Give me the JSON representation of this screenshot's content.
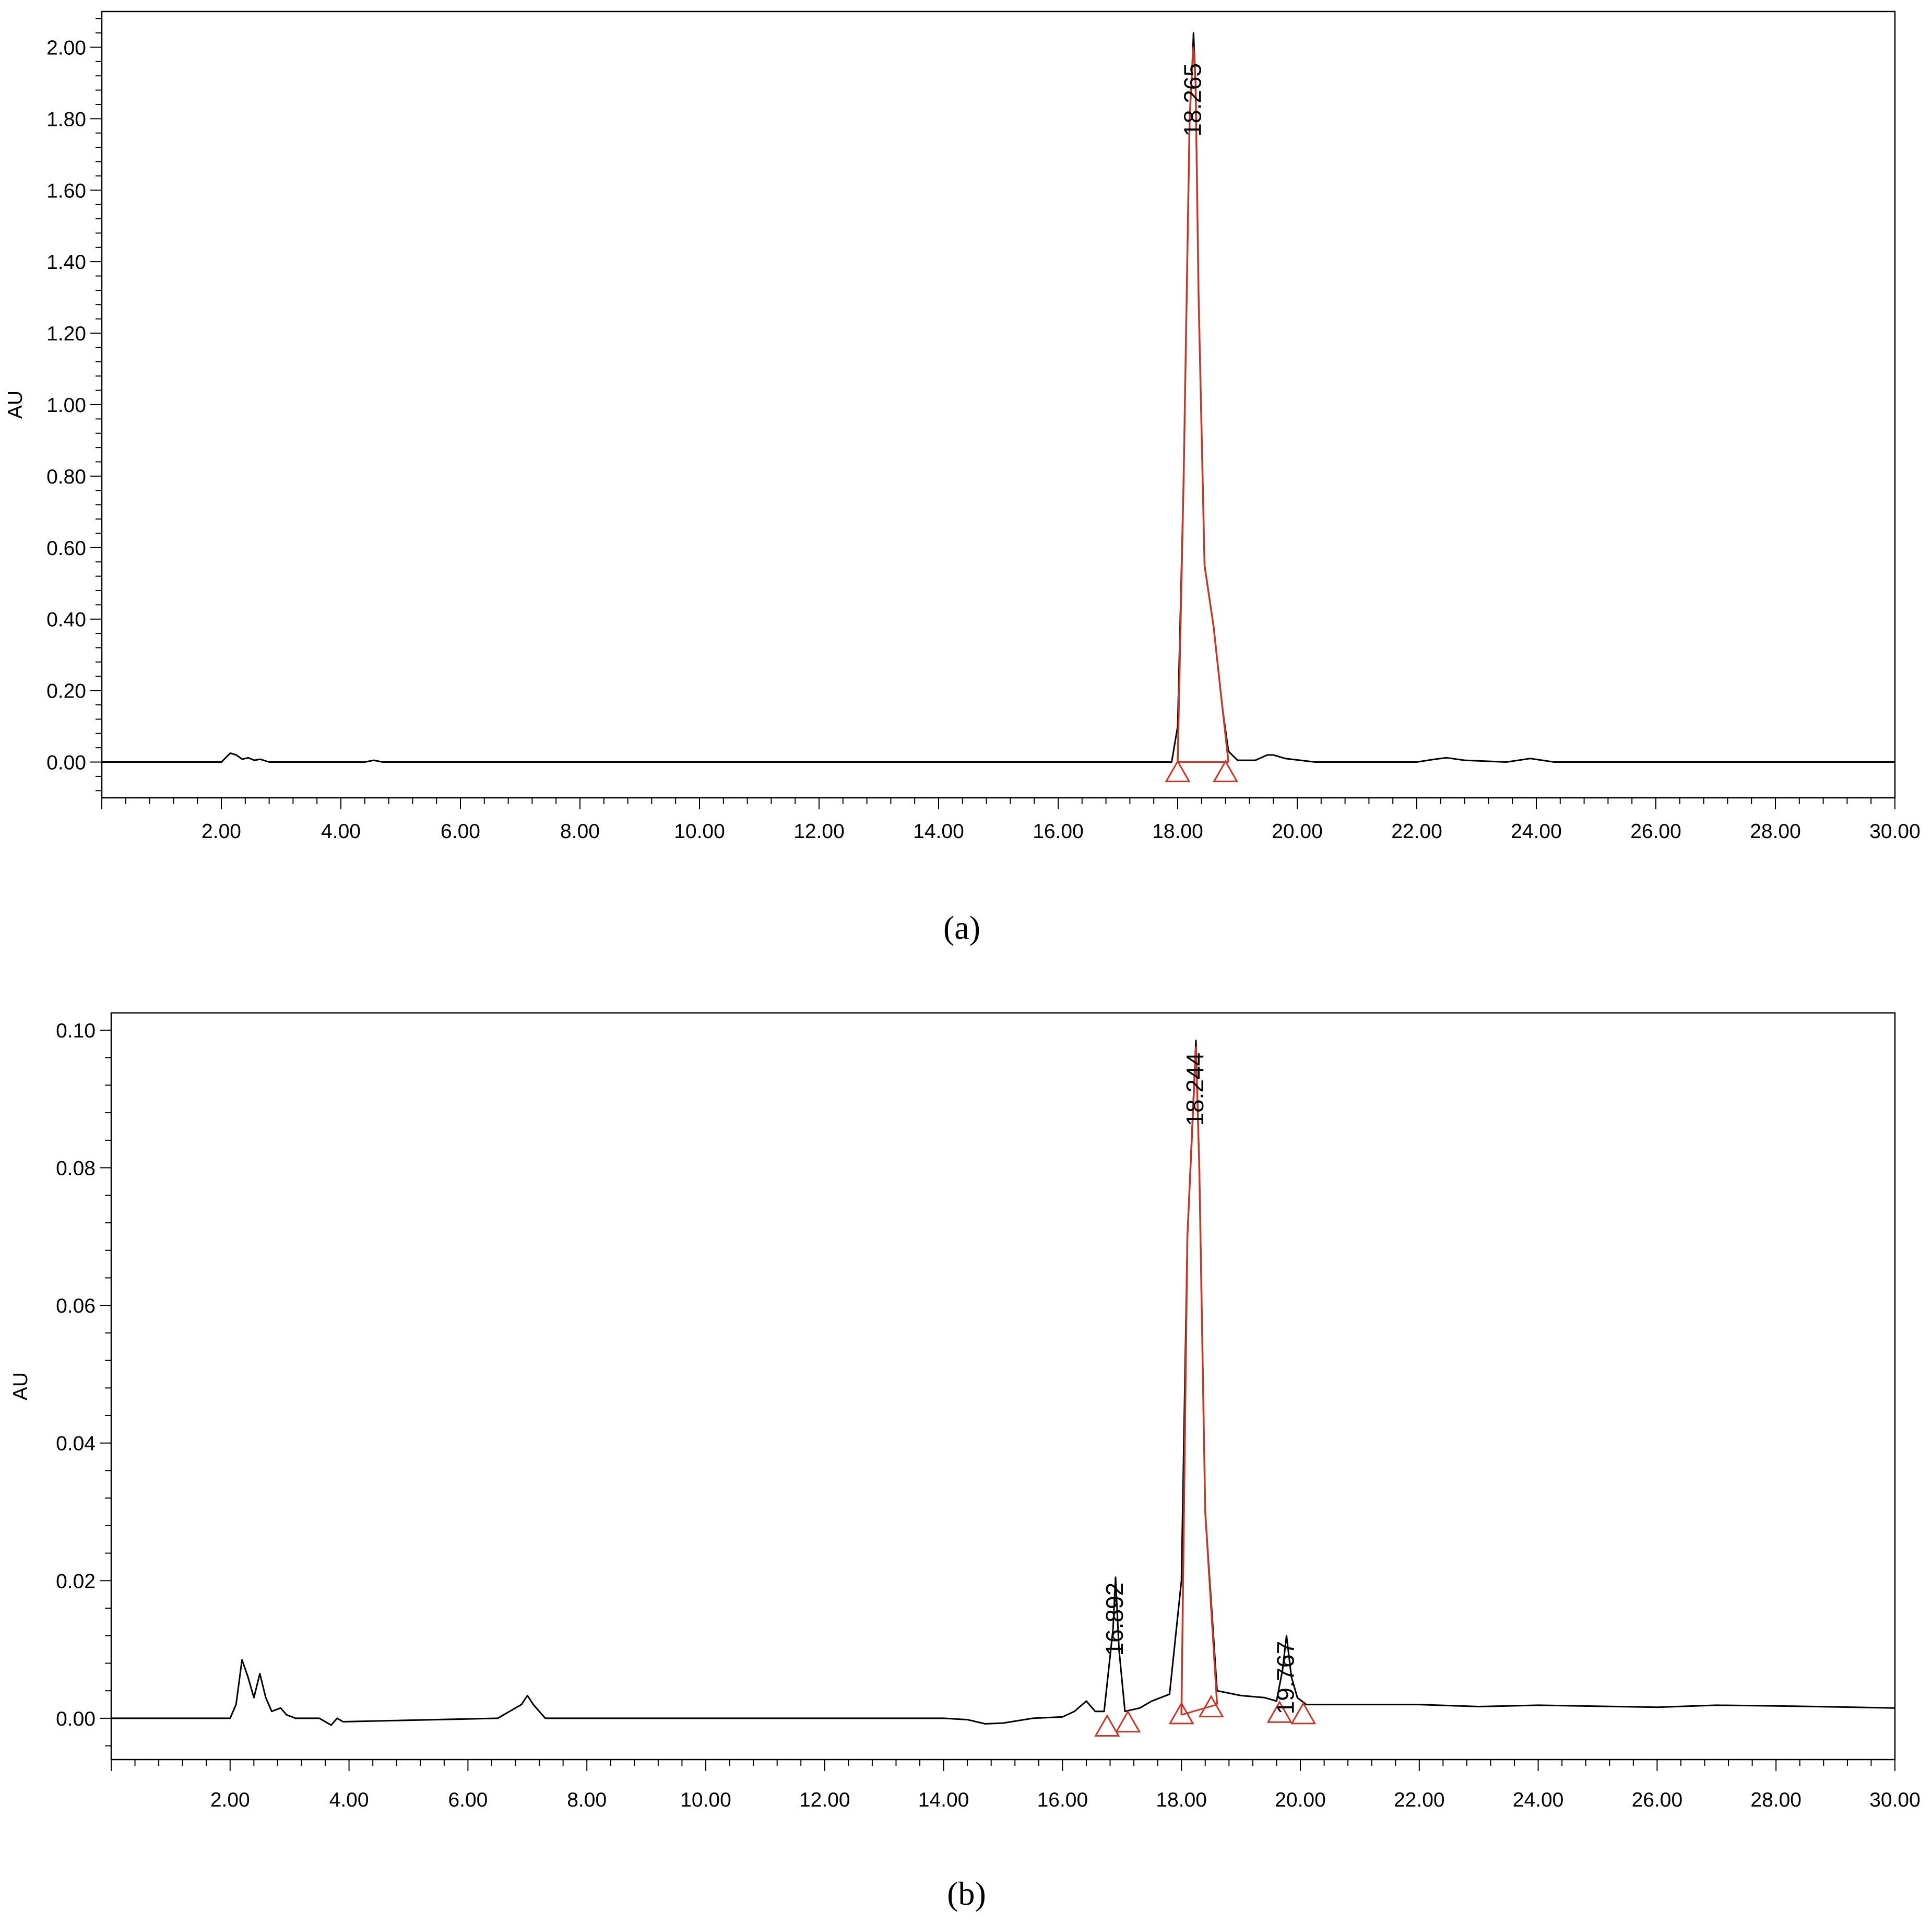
{
  "chart_data": [
    {
      "type": "line",
      "panel_label": "(a)",
      "ylabel": "AU",
      "xlim": [
        0,
        30
      ],
      "ylim": [
        -0.1,
        2.1
      ],
      "x_ticks": [
        "2.00",
        "4.00",
        "6.00",
        "8.00",
        "10.00",
        "12.00",
        "14.00",
        "16.00",
        "18.00",
        "20.00",
        "22.00",
        "24.00",
        "26.00",
        "28.00",
        "30.00"
      ],
      "y_ticks": [
        "0.00",
        "0.20",
        "0.40",
        "0.60",
        "0.80",
        "1.00",
        "1.20",
        "1.40",
        "1.60",
        "1.80",
        "2.00"
      ],
      "y_tick_values": [
        0,
        0.2,
        0.4,
        0.6,
        0.8,
        1.0,
        1.2,
        1.4,
        1.6,
        1.8,
        2.0
      ],
      "series": [
        {
          "color": "#000000",
          "x": [
            0.0,
            2.0,
            2.15,
            2.25,
            2.35,
            2.45,
            2.55,
            2.65,
            2.8,
            3.0,
            4.4,
            4.55,
            4.7,
            5.0,
            17.0,
            17.9,
            18.0,
            18.1,
            18.2,
            18.25,
            18.265,
            18.3,
            18.35,
            18.45,
            18.6,
            18.75,
            18.85,
            19.0,
            19.3,
            19.5,
            19.6,
            19.8,
            20.3,
            22.0,
            22.3,
            22.5,
            22.8,
            23.5,
            23.9,
            24.1,
            24.3,
            26.0,
            30.0
          ],
          "y": [
            0.0,
            0.0,
            0.025,
            0.02,
            0.008,
            0.012,
            0.005,
            0.008,
            0.0,
            0.0,
            0.0,
            0.005,
            0.0,
            0.0,
            0.0,
            0.0,
            0.1,
            0.8,
            1.8,
            1.97,
            2.04,
            1.9,
            1.3,
            0.55,
            0.38,
            0.15,
            0.03,
            0.005,
            0.005,
            0.02,
            0.02,
            0.01,
            0.0,
            0.0,
            0.008,
            0.012,
            0.005,
            0.0,
            0.01,
            0.005,
            0.0,
            0.0,
            0.0
          ]
        },
        {
          "color": "#c0392b",
          "x": [
            18.0,
            18.1,
            18.2,
            18.25,
            18.265,
            18.3,
            18.35,
            18.45,
            18.6,
            18.75,
            18.85
          ],
          "y": [
            0.0,
            0.8,
            1.8,
            1.97,
            2.0,
            1.9,
            1.3,
            0.55,
            0.38,
            0.15,
            0.0
          ]
        }
      ],
      "baseline": {
        "x": [
          18.0,
          18.85
        ],
        "y": [
          0.0,
          0.0
        ],
        "color": "#c0392b"
      },
      "markers": [
        {
          "x": 18.0,
          "y": -0.03,
          "color": "#c0392b"
        },
        {
          "x": 18.8,
          "y": -0.03,
          "color": "#c0392b"
        }
      ],
      "peak_labels": [
        {
          "text": "18.265",
          "x": 18.265,
          "y": 1.97
        }
      ],
      "grid": false
    },
    {
      "type": "line",
      "panel_label": "(b)",
      "ylabel": "AU",
      "xlim": [
        0,
        30
      ],
      "ylim": [
        -0.006,
        0.1025
      ],
      "x_ticks": [
        "2.00",
        "4.00",
        "6.00",
        "8.00",
        "10.00",
        "12.00",
        "14.00",
        "16.00",
        "18.00",
        "20.00",
        "22.00",
        "24.00",
        "26.00",
        "28.00",
        "30.00"
      ],
      "y_ticks": [
        "0.00",
        "0.02",
        "0.04",
        "0.06",
        "0.08",
        "0.10"
      ],
      "y_tick_values": [
        0,
        0.02,
        0.04,
        0.06,
        0.08,
        0.1
      ],
      "series": [
        {
          "color": "#000000",
          "x": [
            0.0,
            0.6,
            2.0,
            2.1,
            2.2,
            2.3,
            2.4,
            2.5,
            2.6,
            2.7,
            2.85,
            2.95,
            3.1,
            3.5,
            3.7,
            3.8,
            3.9,
            6.5,
            6.9,
            7.0,
            7.1,
            7.3,
            7.5,
            14.0,
            14.4,
            14.7,
            15.0,
            15.5,
            16.0,
            16.2,
            16.4,
            16.55,
            16.7,
            16.85,
            16.892,
            16.95,
            17.05,
            17.3,
            17.5,
            17.8,
            18.0,
            18.1,
            18.244,
            18.3,
            18.4,
            18.6,
            19.0,
            19.4,
            19.6,
            19.7,
            19.767,
            19.85,
            19.95,
            20.1,
            22.0,
            23.0,
            24.0,
            26.0,
            27.0,
            28.0,
            30.0
          ],
          "y": [
            0.0,
            0.0,
            0.0,
            0.002,
            0.0085,
            0.006,
            0.003,
            0.0065,
            0.003,
            0.001,
            0.0015,
            0.0005,
            0.0,
            0.0,
            -0.001,
            0.0,
            -0.0005,
            0.0,
            0.002,
            0.0033,
            0.002,
            0.0,
            0.0,
            0.0,
            -0.0002,
            -0.0008,
            -0.0007,
            0.0,
            0.0002,
            0.001,
            0.0025,
            0.001,
            0.001,
            0.013,
            0.0205,
            0.01,
            0.001,
            0.0015,
            0.0025,
            0.0035,
            0.02,
            0.07,
            0.0985,
            0.08,
            0.03,
            0.004,
            0.0033,
            0.003,
            0.0025,
            0.007,
            0.012,
            0.006,
            0.003,
            0.002,
            0.002,
            0.0017,
            0.0019,
            0.0016,
            0.0019,
            0.0018,
            0.0015
          ]
        },
        {
          "color": "#c0392b",
          "x": [
            18.0,
            18.1,
            18.244,
            18.3,
            18.4,
            18.6
          ],
          "y": [
            0.0005,
            0.07,
            0.0975,
            0.08,
            0.03,
            0.002
          ]
        }
      ],
      "baseline": {
        "x": [
          18.0,
          18.6
        ],
        "y": [
          0.0005,
          0.002
        ],
        "color": "#c0392b"
      },
      "markers": [
        {
          "x": 16.75,
          "y": -0.0013,
          "color": "#c0392b"
        },
        {
          "x": 17.1,
          "y": -0.0007,
          "color": "#c0392b"
        },
        {
          "x": 18.0,
          "y": 0.0005,
          "color": "#c0392b"
        },
        {
          "x": 18.5,
          "y": 0.0015,
          "color": "#c0392b"
        },
        {
          "x": 19.65,
          "y": 0.0007,
          "color": "#c0392b"
        },
        {
          "x": 20.05,
          "y": 0.0005,
          "color": "#c0392b"
        }
      ],
      "peak_labels": [
        {
          "text": "16.892",
          "x": 16.892,
          "y": 0.0205
        },
        {
          "text": "18.244",
          "x": 18.244,
          "y": 0.0975
        },
        {
          "text": "19.767",
          "x": 19.767,
          "y": 0.012
        }
      ],
      "grid": false
    }
  ]
}
